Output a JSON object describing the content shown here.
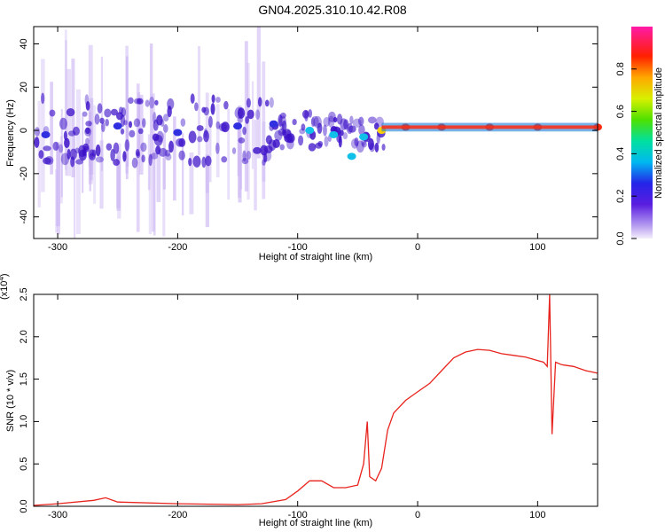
{
  "title": "GN04.2025.310.10.42.R08",
  "colors": {
    "line": "#e8231d",
    "axis": "#000000",
    "spectro_core": "#3b10c8",
    "spectro_faint": "#c9b2f2"
  },
  "chart_data": [
    {
      "type": "heatmap",
      "xlabel": "Height of straight line (km)",
      "ylabel": "Frequency (Hz)",
      "xlim": [
        -320,
        150
      ],
      "ylim": [
        -50,
        48
      ],
      "xticks": [
        -300,
        -200,
        -100,
        0,
        100
      ],
      "yticks": [
        -40,
        -20,
        0,
        20,
        40
      ],
      "colorbar": {
        "label": "Normalized spectral amplitude",
        "range": [
          0.0,
          1.0
        ],
        "ticks": [
          0.0,
          0.2,
          0.4,
          0.6,
          0.8
        ],
        "tick_labels": [
          "0.0",
          "0.2",
          "0.4",
          "0.6",
          "0.8"
        ]
      },
      "ridge": [
        {
          "x": -310,
          "f": -2,
          "amp": 0.15
        },
        {
          "x": -250,
          "f": 2,
          "amp": 0.25
        },
        {
          "x": -200,
          "f": -1,
          "amp": 0.2
        },
        {
          "x": -150,
          "f": 2,
          "amp": 0.22
        },
        {
          "x": -120,
          "f": 3,
          "amp": 0.3
        },
        {
          "x": -90,
          "f": 0,
          "amp": 0.35
        },
        {
          "x": -70,
          "f": -2,
          "amp": 0.4
        },
        {
          "x": -55,
          "f": -12,
          "amp": 0.35
        },
        {
          "x": -45,
          "f": -3,
          "amp": 0.4
        },
        {
          "x": -30,
          "f": 0,
          "amp": 0.7
        },
        {
          "x": -10,
          "f": 1.5,
          "amp": 0.85
        },
        {
          "x": 20,
          "f": 1.5,
          "amp": 0.85
        },
        {
          "x": 60,
          "f": 1.5,
          "amp": 0.9
        },
        {
          "x": 100,
          "f": 1.5,
          "amp": 0.9
        },
        {
          "x": 150,
          "f": 1.5,
          "amp": 0.85
        }
      ]
    },
    {
      "type": "line",
      "xlabel": "Height of straight line (km)",
      "ylabel": "SNR (10 * v/v)",
      "y_multiplier": "(x10",
      "y_multiplier_exp": "4",
      "y_multiplier_close": ")",
      "xlim": [
        -320,
        150
      ],
      "ylim": [
        0,
        2.5
      ],
      "xticks": [
        -300,
        -200,
        -100,
        0,
        100
      ],
      "yticks": [
        0.0,
        0.5,
        1.0,
        1.5,
        2.0,
        2.5
      ],
      "ytick_labels": [
        "0.0",
        "0.5",
        "1.0",
        "1.5",
        "2.0",
        "2.5"
      ],
      "series": [
        {
          "x": [
            -320,
            -300,
            -270,
            -260,
            -250,
            -200,
            -150,
            -130,
            -110,
            -100,
            -90,
            -80,
            -70,
            -60,
            -50,
            -45,
            -42,
            -40,
            -35,
            -30,
            -25,
            -20,
            -10,
            0,
            10,
            20,
            30,
            40,
            50,
            60,
            70,
            80,
            90,
            100,
            105,
            108,
            110,
            112,
            115,
            120,
            130,
            140,
            150
          ],
          "y": [
            0.01,
            0.03,
            0.07,
            0.1,
            0.05,
            0.03,
            0.02,
            0.03,
            0.08,
            0.18,
            0.3,
            0.3,
            0.22,
            0.22,
            0.25,
            0.5,
            1.0,
            0.35,
            0.3,
            0.45,
            0.9,
            1.1,
            1.25,
            1.35,
            1.45,
            1.6,
            1.75,
            1.82,
            1.85,
            1.84,
            1.8,
            1.78,
            1.76,
            1.72,
            1.7,
            1.65,
            2.5,
            0.85,
            1.7,
            1.67,
            1.65,
            1.6,
            1.57
          ]
        }
      ]
    }
  ]
}
